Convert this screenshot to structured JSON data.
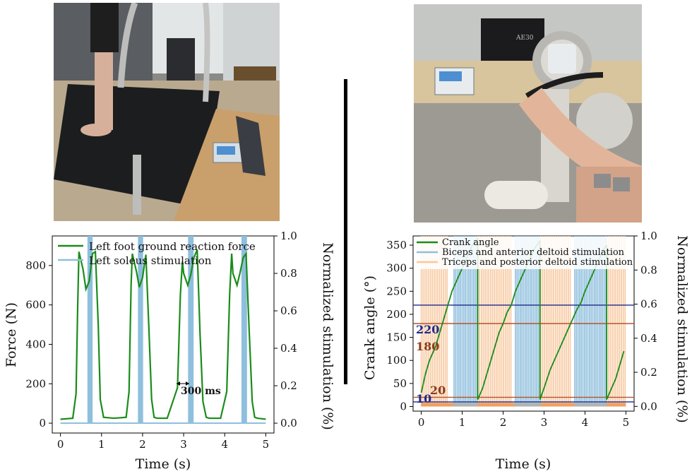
{
  "photos": {
    "left": {
      "icon": "treadmill-photo-icon",
      "screen_text": ""
    },
    "right": {
      "icon": "arm-cycle-photo-icon",
      "laptop_text": "AE30"
    }
  },
  "chart_data": [
    {
      "type": "line",
      "xlabel": "Time (s)",
      "ylabel": "Force (N)",
      "y2label": "Normalized stimulation (%)",
      "xlim": [
        -0.2,
        5.2
      ],
      "ylim": [
        -50,
        950
      ],
      "y2lim": [
        -0.0526,
        1.0
      ],
      "xticks": [
        "0",
        "1",
        "2",
        "3",
        "4",
        "5"
      ],
      "yticks": [
        "0",
        "200",
        "400",
        "600",
        "800"
      ],
      "y2ticks": [
        "0.0",
        "0.2",
        "0.4",
        "0.6",
        "0.8",
        "1.0"
      ],
      "legend": [
        "Left foot ground reaction force",
        "Left soleus stimulation"
      ],
      "legend_position": "top-left",
      "annotation": "300 ms",
      "series": [
        {
          "name": "Left foot ground reaction force",
          "color": "#1a8c1a",
          "x": [
            0,
            0.3,
            0.38,
            0.42,
            0.45,
            0.55,
            0.62,
            0.7,
            0.78,
            0.85,
            0.92,
            0.97,
            1.05,
            1.3,
            1.6,
            1.67,
            1.72,
            1.75,
            1.85,
            1.92,
            2.0,
            2.08,
            2.15,
            2.22,
            2.28,
            2.35,
            2.6,
            2.85,
            2.92,
            2.97,
            3.0,
            3.1,
            3.17,
            3.25,
            3.33,
            3.4,
            3.47,
            3.55,
            3.62,
            3.9,
            4.05,
            4.12,
            4.17,
            4.2,
            4.3,
            4.37,
            4.45,
            4.52,
            4.6,
            4.67,
            4.73,
            4.8,
            5.0
          ],
          "y": [
            20,
            25,
            150,
            600,
            870,
            780,
            680,
            720,
            860,
            870,
            500,
            120,
            30,
            25,
            30,
            160,
            700,
            860,
            770,
            690,
            740,
            855,
            500,
            120,
            30,
            25,
            25,
            180,
            650,
            820,
            760,
            700,
            750,
            840,
            880,
            450,
            110,
            30,
            25,
            25,
            160,
            650,
            860,
            760,
            700,
            760,
            840,
            860,
            450,
            110,
            30,
            25,
            20
          ]
        },
        {
          "name": "Left soleus stimulation",
          "color": "#8fbfdd",
          "x": [
            0.7,
            0.74,
            1.93,
            1.97,
            3.15,
            3.2,
            4.45,
            4.5
          ],
          "y": [
            1,
            1,
            1,
            1,
            1,
            1,
            1,
            1
          ]
        }
      ]
    },
    {
      "type": "line",
      "xlabel": "Time (s)",
      "ylabel": "Crank angle (°)",
      "y2label": "Normalized stimulation (%)",
      "xlim": [
        -0.2,
        5.2
      ],
      "ylim": [
        -10,
        370
      ],
      "y2lim": [
        -0.0278,
        1.0
      ],
      "xticks": [
        "0",
        "1",
        "2",
        "3",
        "4",
        "5"
      ],
      "yticks": [
        "0",
        "50",
        "100",
        "150",
        "200",
        "250",
        "300",
        "350"
      ],
      "y2ticks": [
        "0.0",
        "0.2",
        "0.4",
        "0.6",
        "0.8",
        "1.0"
      ],
      "legend": [
        "Crank angle",
        "Biceps and anterior deltoid stimulation",
        "Triceps and posterior deltoid stimulation"
      ],
      "legend_position": "top-left",
      "threshold_labels": [
        "220",
        "180",
        "20",
        "10"
      ],
      "thresholds": [
        {
          "value": 220,
          "color": "#1f2a8a"
        },
        {
          "value": 180,
          "color": "#b5552a"
        },
        {
          "value": 20,
          "color": "#b5552a"
        },
        {
          "value": 10,
          "color": "#1f2a8a"
        }
      ],
      "series": [
        {
          "name": "Crank angle",
          "color": "#1a8c1a",
          "segments": [
            {
              "x": [
                0,
                0.1,
                0.2,
                0.35,
                0.45,
                0.55,
                0.65,
                0.75,
                0.85,
                0.95,
                1.05,
                1.15,
                1.25,
                1.35,
                1.38
              ],
              "y": [
                30,
                70,
                100,
                130,
                160,
                190,
                220,
                250,
                270,
                290,
                310,
                330,
                350,
                360,
                365
              ]
            },
            {
              "x": [
                1.38,
                1.5,
                1.6,
                1.7,
                1.8,
                1.9,
                2.0,
                2.1,
                2.2,
                2.3,
                2.45,
                2.6,
                2.75,
                2.9
              ],
              "y": [
                15,
                40,
                70,
                100,
                130,
                160,
                180,
                205,
                220,
                250,
                280,
                310,
                340,
                360
              ]
            },
            {
              "x": [
                2.9,
                3.0,
                3.15,
                3.3,
                3.45,
                3.6,
                3.7,
                3.8,
                3.9,
                4.0,
                4.15,
                4.3,
                4.45,
                4.53
              ],
              "y": [
                15,
                40,
                80,
                110,
                140,
                170,
                190,
                210,
                225,
                250,
                280,
                310,
                340,
                350
              ]
            },
            {
              "x": [
                4.53,
                4.65,
                4.75,
                4.85,
                4.95
              ],
              "y": [
                15,
                40,
                60,
                90,
                120
              ]
            }
          ]
        },
        {
          "name": "Biceps and anterior deltoid stimulation",
          "color": "#8fbfdd",
          "ranges": [
            [
              0.8,
              1.38
            ],
            [
              2.3,
              2.92
            ],
            [
              3.75,
              4.53
            ]
          ]
        },
        {
          "name": "Triceps and posterior deltoid stimulation",
          "color": "#f7c79e",
          "ranges": [
            [
              0,
              0.65
            ],
            [
              1.38,
              2.2
            ],
            [
              2.92,
              3.65
            ],
            [
              4.53,
              5.0
            ]
          ]
        }
      ]
    }
  ]
}
